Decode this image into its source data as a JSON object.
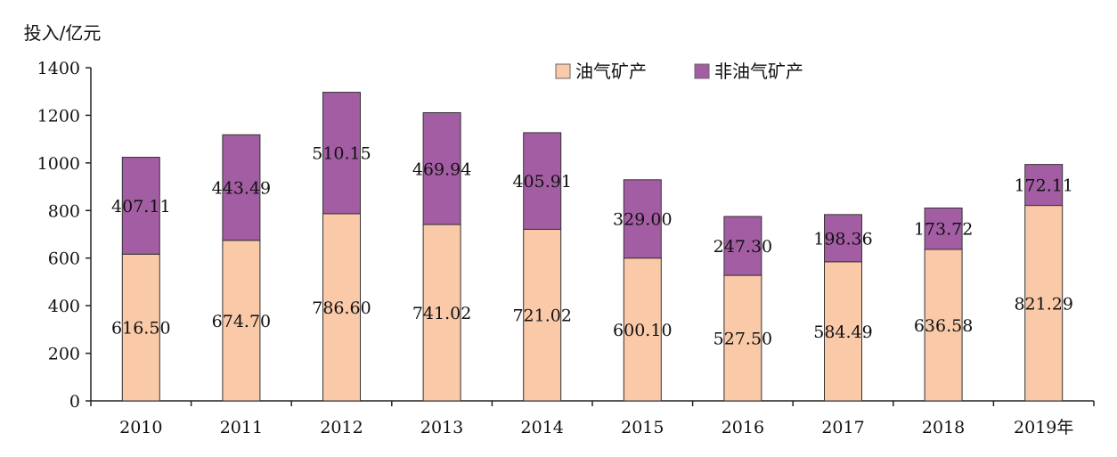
{
  "chart_data": {
    "type": "bar",
    "stacked": true,
    "title": "",
    "xlabel": "",
    "ylabel": "投入/亿元",
    "ylim": [
      0,
      1400
    ],
    "yticks": [
      0,
      200,
      400,
      600,
      800,
      1000,
      1200,
      1400
    ],
    "categories": [
      "2010",
      "2011",
      "2012",
      "2013",
      "2014",
      "2015",
      "2016",
      "2017",
      "2018",
      "2019年"
    ],
    "series": [
      {
        "name": "油气矿产",
        "color": "#f9c9a8",
        "values": [
          616.5,
          674.7,
          786.6,
          741.02,
          721.02,
          600.1,
          527.5,
          584.49,
          636.58,
          821.29
        ],
        "labels": [
          "616.50",
          "674.70",
          "786.60",
          "741.02",
          "721.02",
          "600.10",
          "527.50",
          "584.49",
          "636.58",
          "821.29"
        ]
      },
      {
        "name": "非油气矿产",
        "color": "#a35da3",
        "values": [
          407.11,
          443.49,
          510.15,
          469.94,
          405.91,
          329.0,
          247.3,
          198.36,
          173.72,
          172.11
        ],
        "labels": [
          "407.11",
          "443.49",
          "510.15",
          "469.94",
          "405.91",
          "329.00",
          "247.30",
          "198.36",
          "173.72",
          "172.11"
        ]
      }
    ],
    "legend_position": "top-right",
    "grid": false
  }
}
